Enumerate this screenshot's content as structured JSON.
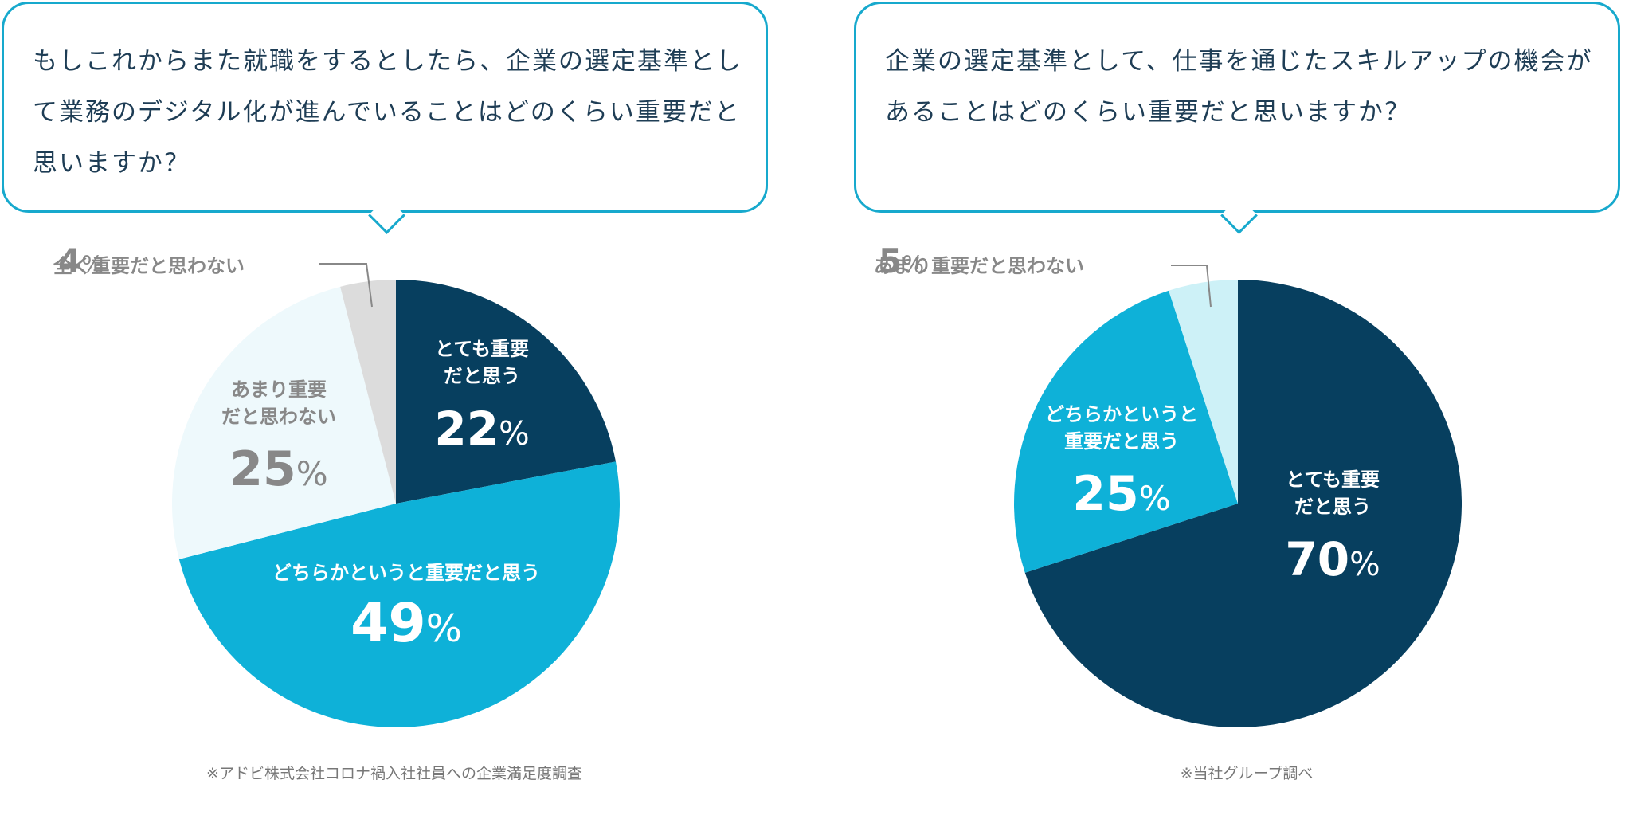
{
  "chart_data": [
    {
      "type": "pie",
      "title": "もしこれからまた就職をするとしたら、企業の選定基準として業務のデジタル化が進んでいることはどのくらい重要だと思いますか？",
      "labels": [
        "とても重要だと思う",
        "どちらかというと重要だと思う",
        "あまり重要だと思わない",
        "全く重要だと思わない"
      ],
      "values": [
        22,
        49,
        25,
        4
      ],
      "display_labels": [
        "とても重要\nだと思う",
        "どちらかというと重要だと思う",
        "あまり重要\nだと思わない",
        "全く重要だと思わない"
      ],
      "percent_texts": [
        "22",
        "49",
        "25",
        "4"
      ],
      "percent_sign": "%",
      "colors": [
        "#073f5f",
        "#0eb1d8",
        "#eef9fc",
        "#dcdcdc"
      ],
      "label_colors": [
        "#ffffff",
        "#ffffff",
        "#888888",
        "#888888"
      ],
      "start_angle_deg": 0,
      "direction": "clockwise",
      "note": "※アドビ株式会社コロナ禍入社社員への企業満足度調査"
    },
    {
      "type": "pie",
      "title": "企業の選定基準として、仕事を通じたスキルアップの機会があることはどのくらい重要だと思いますか？",
      "labels": [
        "とても重要だと思う",
        "どちらかというと重要だと思う",
        "あまり重要だと思わない"
      ],
      "values": [
        70,
        25,
        5
      ],
      "display_labels": [
        "とても重要\nだと思う",
        "どちらかというと\n重要だと思う",
        "あまり重要だと思わない"
      ],
      "percent_texts": [
        "70",
        "25",
        "5"
      ],
      "percent_sign": "%",
      "colors": [
        "#073f5f",
        "#0eb1d8",
        "#cdf1f7"
      ],
      "label_colors": [
        "#ffffff",
        "#ffffff",
        "#888888"
      ],
      "start_angle_deg": 0,
      "direction": "clockwise",
      "note": "※当社グループ調べ"
    }
  ]
}
